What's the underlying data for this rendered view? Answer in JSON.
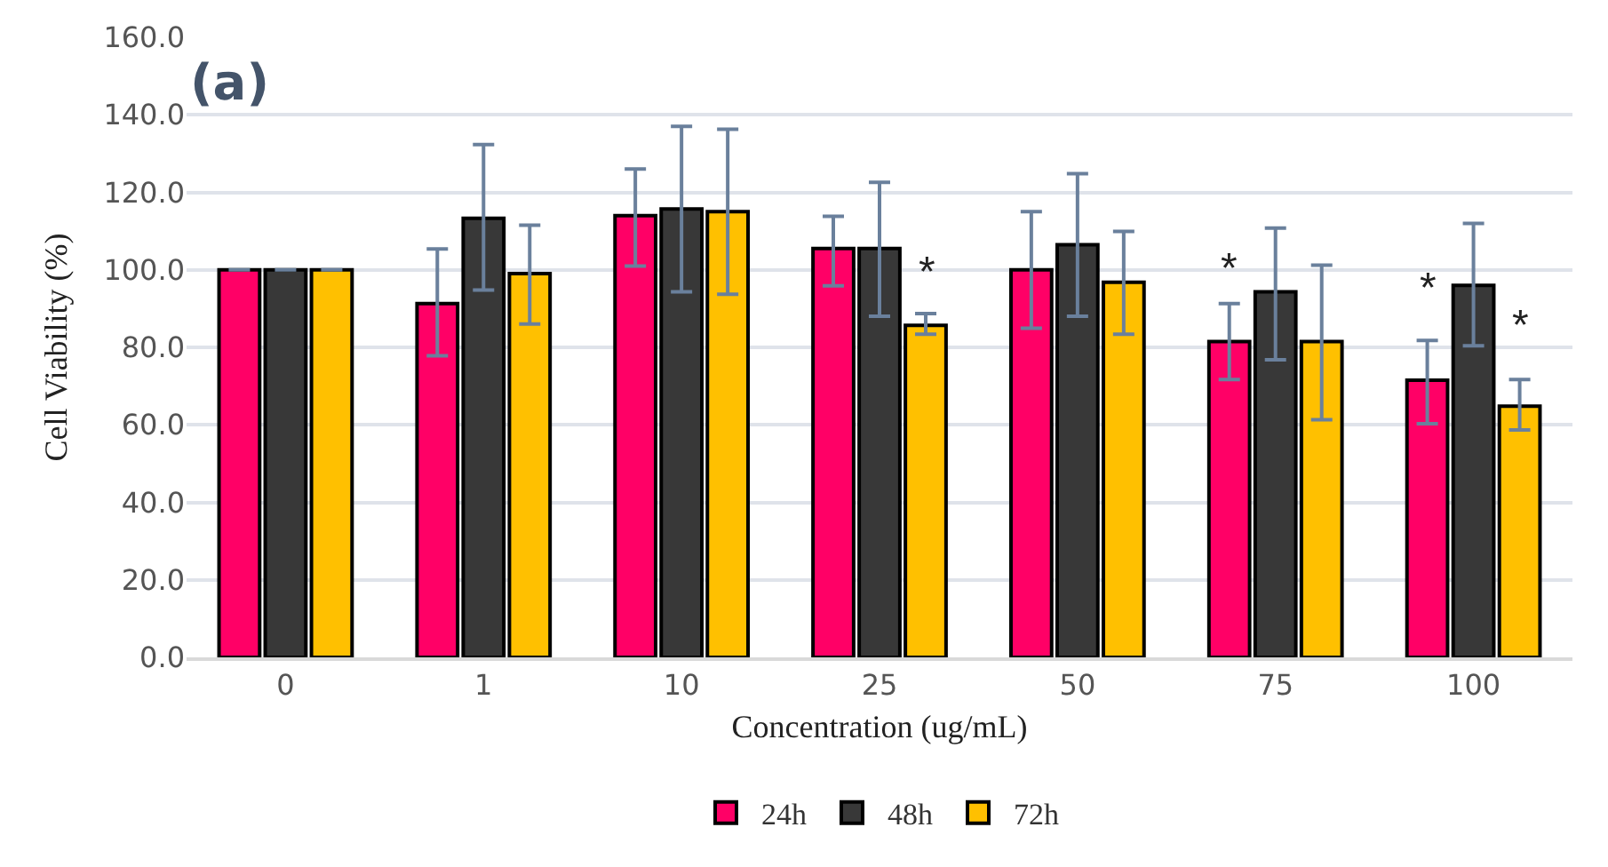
{
  "chart_data": {
    "type": "bar",
    "xlabel": "Concentration (ug/mL)",
    "ylabel": "Cell Viability (%)",
    "categories": [
      "0",
      "1",
      "10",
      "25",
      "50",
      "75",
      "100"
    ],
    "series": [
      {
        "name": "24h",
        "color": "#ff0066",
        "values": [
          100,
          91.3,
          114,
          105.5,
          100,
          81.5,
          71.5
        ],
        "errors": [
          null,
          [
            77.8,
            105.4
          ],
          [
            101,
            126
          ],
          [
            95.9,
            113.8
          ],
          [
            84.9,
            115
          ],
          [
            71.7,
            91.3
          ],
          [
            60.3,
            81.8
          ]
        ]
      },
      {
        "name": "48h",
        "color": "#383838",
        "values": [
          100,
          113.3,
          115.7,
          105.5,
          106.5,
          94.3,
          96
        ],
        "errors": [
          null,
          [
            94.8,
            132.3
          ],
          [
            94.3,
            137
          ],
          [
            88,
            122.6
          ],
          [
            88,
            124.8
          ],
          [
            76.8,
            110.8
          ],
          [
            80.4,
            112
          ]
        ]
      },
      {
        "name": "72h",
        "color": "#ffc000",
        "values": [
          100,
          99,
          115,
          85.7,
          96.8,
          81.5,
          64.8
        ],
        "errors": [
          null,
          [
            86,
            111.5
          ],
          [
            93.7,
            136.3
          ],
          [
            83.4,
            88.7
          ],
          [
            83.4,
            109.9
          ],
          [
            61.3,
            101.2
          ],
          [
            58.7,
            71.7
          ]
        ]
      }
    ],
    "ylim": [
      0,
      160
    ],
    "yticks": [
      {
        "value": 0,
        "label": "0.0"
      },
      {
        "value": 20,
        "label": "20.0"
      },
      {
        "value": 40,
        "label": "40.0"
      },
      {
        "value": 60,
        "label": "60.0"
      },
      {
        "value": 80,
        "label": "80.0"
      },
      {
        "value": 100,
        "label": "100.0"
      },
      {
        "value": 120,
        "label": "120.0"
      },
      {
        "value": 140,
        "label": "140.0"
      },
      {
        "value": 160,
        "label": "160.0"
      }
    ],
    "grid": "y",
    "legend": "bottom",
    "annotations": [
      "(a)",
      {
        "text": "*",
        "x": "25",
        "y": 99.4
      },
      {
        "text": "*",
        "x": "75",
        "y": 100
      },
      {
        "text": "*",
        "x": "100",
        "y": 95
      },
      {
        "text": "*",
        "x": "100",
        "y": 85.7
      }
    ]
  }
}
